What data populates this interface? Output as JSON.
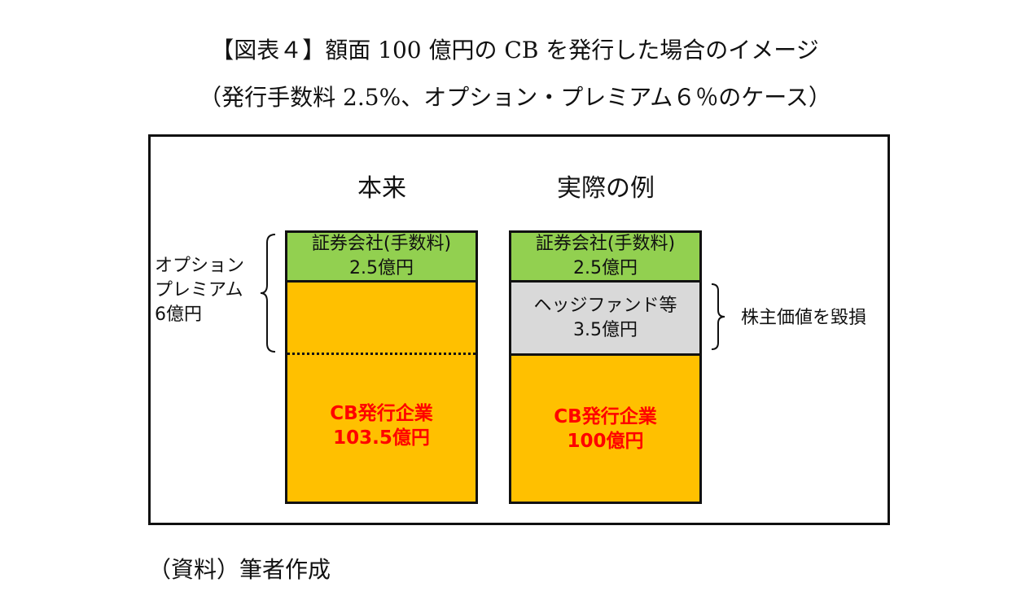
{
  "title": {
    "line1": "【図表４】額面 100 億円の CB を発行した場合のイメージ",
    "line2": "（発行手数料 2.5%、オプション・プレミアム６％のケース）"
  },
  "columns": {
    "left_heading": "本来",
    "right_heading": "実際の例"
  },
  "left_stack": {
    "securities_label": "証券会社(手数料)",
    "securities_value": "2.5億円",
    "issuer_label": "CB発行企業",
    "issuer_value": "103.5億円"
  },
  "right_stack": {
    "securities_label": "証券会社(手数料)",
    "securities_value": "2.5億円",
    "hedge_label": "ヘッジファンド等",
    "hedge_value": "3.5億円",
    "issuer_label": "CB発行企業",
    "issuer_value": "100億円"
  },
  "annotations": {
    "option_premium_line1": "オプション",
    "option_premium_line2": "プレミアム",
    "option_premium_line3": "6億円",
    "shareholder_value": "株主価値を毀損"
  },
  "source": "（資料）筆者作成",
  "colors": {
    "securities": "#92d050",
    "issuer": "#ffc000",
    "hedge": "#d9d9d9",
    "issuer_text": "#ff0000"
  }
}
